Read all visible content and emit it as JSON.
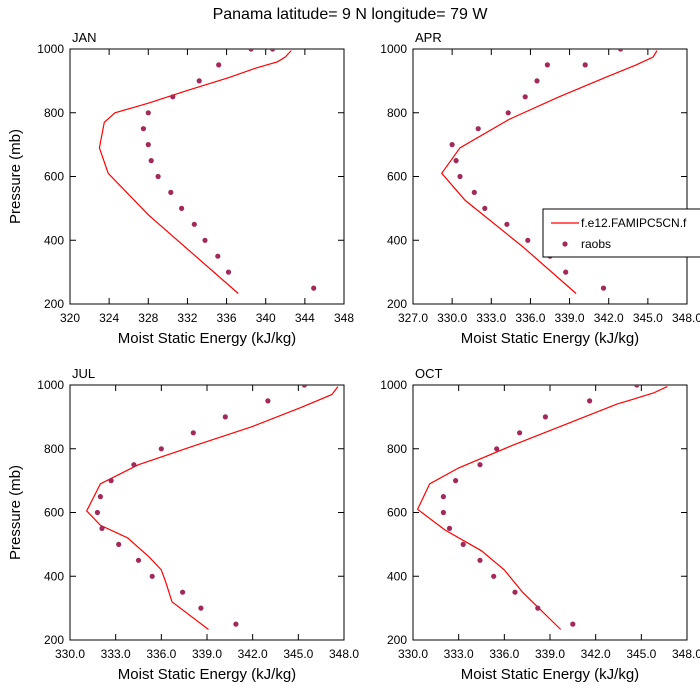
{
  "title": "Panama  latitude= 9 N longitude= 79 W",
  "colors": {
    "model": "#ff0000",
    "obs": "#a3295a"
  },
  "legend": {
    "model": "f.e12.FAMIPC5CN.f",
    "obs": "raobs"
  },
  "chart_data": [
    {
      "type": "line",
      "title": "JAN",
      "xlabel": "Moist Static Energy (kJ/kg)",
      "ylabel": "Pressure (mb)",
      "xlim": [
        320,
        348
      ],
      "ylim": [
        1000,
        200
      ],
      "xticks": [
        "320",
        "324",
        "328",
        "332",
        "336",
        "340",
        "344",
        "348"
      ],
      "yticks": [
        "200",
        "400",
        "600",
        "800",
        "1000"
      ],
      "series": [
        {
          "name": "f.e12.FAMIPC5CN.f",
          "style": "line",
          "x": [
            337.2,
            328.0,
            323.9,
            323.0,
            323.5,
            324.6,
            328.0,
            332.0,
            336.2,
            339.0,
            341.2,
            342.0,
            342.6
          ],
          "y": [
            233,
            480,
            610,
            690,
            770,
            800,
            830,
            870,
            910,
            940,
            960,
            975,
            995
          ]
        },
        {
          "name": "raobs",
          "style": "markers",
          "x": [
            344.9,
            336.2,
            335.1,
            333.8,
            332.7,
            331.4,
            330.3,
            329.0,
            328.3,
            328.0,
            327.5,
            328.0,
            330.5,
            333.2,
            335.2,
            338.5,
            340.7
          ],
          "y": [
            250,
            300,
            350,
            400,
            450,
            500,
            550,
            600,
            650,
            700,
            750,
            800,
            850,
            900,
            950,
            1000,
            1000
          ]
        }
      ]
    },
    {
      "type": "line",
      "title": "APR",
      "xlabel": "Moist Static Energy (kJ/kg)",
      "ylabel": "",
      "xlim": [
        327,
        348
      ],
      "ylim": [
        1000,
        200
      ],
      "xticks": [
        "327.0",
        "330.0",
        "333.0",
        "336.0",
        "339.0",
        "342.0",
        "345.0",
        "348.0"
      ],
      "yticks": [
        "200",
        "400",
        "600",
        "800",
        "1000"
      ],
      "series": [
        {
          "name": "f.e12.FAMIPC5CN.f",
          "style": "line",
          "x": [
            339.5,
            335.4,
            331.0,
            329.2,
            330.6,
            334.4,
            338.2,
            341.7,
            344.1,
            345.4,
            345.7
          ],
          "y": [
            233,
            380,
            525,
            610,
            690,
            780,
            850,
            910,
            950,
            975,
            995
          ]
        },
        {
          "name": "raobs",
          "style": "markers",
          "x": [
            341.6,
            338.7,
            337.5,
            335.8,
            334.2,
            332.5,
            331.7,
            330.6,
            330.3,
            330.0,
            332.0,
            334.3,
            335.6,
            336.5,
            337.3,
            340.2,
            342.9
          ],
          "y": [
            250,
            300,
            350,
            400,
            450,
            500,
            550,
            600,
            650,
            700,
            750,
            800,
            850,
            900,
            950,
            950,
            1000
          ]
        }
      ]
    },
    {
      "type": "line",
      "title": "JUL",
      "xlabel": "Moist Static Energy (kJ/kg)",
      "ylabel": "Pressure (mb)",
      "xlim": [
        330,
        348
      ],
      "ylim": [
        1000,
        200
      ],
      "xticks": [
        "330.0",
        "333.0",
        "336.0",
        "339.0",
        "342.0",
        "345.0",
        "348.0"
      ],
      "yticks": [
        "200",
        "400",
        "600",
        "800",
        "1000"
      ],
      "series": [
        {
          "name": "f.e12.FAMIPC5CN.f",
          "style": "line",
          "x": [
            339.1,
            336.7,
            336.3,
            336.0,
            335.2,
            333.8,
            332.0,
            331.1,
            332.0,
            334.5,
            338.2,
            342.0,
            345.2,
            347.2,
            347.6
          ],
          "y": [
            233,
            320,
            380,
            420,
            460,
            520,
            560,
            605,
            690,
            750,
            810,
            870,
            930,
            970,
            995
          ]
        },
        {
          "name": "raobs",
          "style": "markers",
          "x": [
            340.9,
            338.6,
            337.4,
            335.4,
            334.5,
            333.2,
            332.1,
            331.8,
            332.0,
            332.7,
            334.2,
            336.0,
            338.1,
            340.2,
            343.0,
            345.4
          ],
          "y": [
            250,
            300,
            350,
            400,
            450,
            500,
            550,
            600,
            650,
            700,
            750,
            800,
            850,
            900,
            950,
            1000
          ]
        }
      ]
    },
    {
      "type": "line",
      "title": "OCT",
      "xlabel": "Moist Static Energy (kJ/kg)",
      "ylabel": "",
      "xlim": [
        330,
        348
      ],
      "ylim": [
        1000,
        200
      ],
      "xticks": [
        "330.0",
        "333.0",
        "336.0",
        "339.0",
        "342.0",
        "345.0",
        "348.0"
      ],
      "yticks": [
        "200",
        "400",
        "600",
        "800",
        "1000"
      ],
      "series": [
        {
          "name": "f.e12.FAMIPC5CN.f",
          "style": "line",
          "x": [
            339.7,
            337.2,
            336.0,
            334.5,
            332.1,
            330.3,
            331.1,
            333.0,
            336.5,
            340.2,
            343.4,
            345.8,
            346.7
          ],
          "y": [
            233,
            350,
            420,
            480,
            545,
            610,
            690,
            740,
            810,
            880,
            940,
            975,
            995
          ]
        },
        {
          "name": "raobs",
          "style": "markers",
          "x": [
            340.5,
            338.2,
            336.7,
            335.3,
            334.4,
            333.3,
            332.4,
            332.0,
            332.0,
            332.8,
            334.4,
            335.5,
            337.0,
            338.7,
            341.6,
            344.7
          ],
          "y": [
            250,
            300,
            350,
            400,
            450,
            500,
            550,
            600,
            650,
            700,
            750,
            800,
            850,
            900,
            950,
            1000
          ]
        }
      ]
    }
  ]
}
